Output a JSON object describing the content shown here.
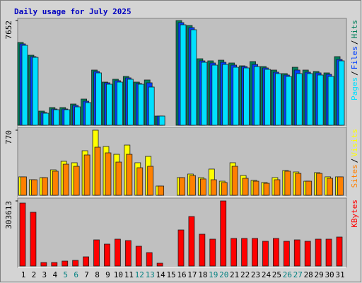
{
  "title": "Daily usage for July 2025",
  "legend_separator": "/",
  "chart_data": [
    {
      "type": "bar",
      "ylim": [
        0,
        7652
      ],
      "yticks": [
        7652
      ],
      "series": [
        {
          "name": "Hits",
          "color": "#00805c",
          "values": [
            6049,
            5118,
            1034,
            1293,
            1293,
            1551,
            1913,
            4033,
            3154,
            3361,
            3567,
            3154,
            3309,
            672,
            0,
            7652,
            7290,
            4860,
            4705,
            4756,
            4550,
            4343,
            4653,
            4291,
            4033,
            3774,
            4239,
            4033,
            3929,
            3826,
            5015
          ]
        },
        {
          "name": "Files",
          "color": "#0040ff",
          "values": [
            5946,
            5015,
            931,
            1189,
            1189,
            1448,
            1758,
            3929,
            3102,
            3257,
            3464,
            3050,
            3102,
            672,
            0,
            7497,
            7135,
            4705,
            4550,
            4601,
            4395,
            4291,
            4446,
            4188,
            3878,
            3671,
            4033,
            3878,
            3826,
            3722,
            4808
          ]
        },
        {
          "name": "Pages",
          "color": "#00e0ff",
          "values": [
            5842,
            4963,
            879,
            1137,
            1137,
            1344,
            1654,
            3826,
            2999,
            3154,
            3361,
            2999,
            2792,
            672,
            0,
            7341,
            6980,
            4601,
            4395,
            4446,
            4239,
            4188,
            4291,
            4084,
            3774,
            3567,
            3774,
            3774,
            3671,
            3567,
            4705
          ]
        }
      ]
    },
    {
      "type": "bar",
      "ylim": [
        0,
        770
      ],
      "yticks": [
        770
      ],
      "series": [
        {
          "name": "Visits",
          "color": "#ffff00",
          "values": [
            218,
            184,
            209,
            301,
            402,
            385,
            527,
            770,
            577,
            485,
            594,
            385,
            460,
            109,
            0,
            209,
            251,
            209,
            310,
            167,
            385,
            234,
            176,
            151,
            209,
            293,
            276,
            167,
            268,
            218,
            218
          ]
        },
        {
          "name": "Sites",
          "color": "#ff8000",
          "values": [
            218,
            184,
            209,
            285,
            368,
            343,
            477,
            569,
            502,
            393,
            485,
            326,
            343,
            109,
            0,
            209,
            234,
            193,
            184,
            151,
            343,
            201,
            167,
            142,
            184,
            285,
            259,
            167,
            259,
            201,
            218
          ]
        }
      ]
    },
    {
      "type": "bar",
      "ylim": [
        0,
        303613
      ],
      "yticks": [
        303613
      ],
      "categories": [
        "1",
        "2",
        "3",
        "4",
        "5",
        "6",
        "7",
        "8",
        "9",
        "10",
        "11",
        "12",
        "13",
        "14",
        "15",
        "16",
        "17",
        "18",
        "19",
        "20",
        "21",
        "22",
        "23",
        "24",
        "25",
        "26",
        "27",
        "28",
        "29",
        "30",
        "31"
      ],
      "highlighted_categories": [
        "5",
        "6",
        "12",
        "13",
        "19",
        "20",
        "26",
        "27"
      ],
      "highlight_color": "#008080",
      "series": [
        {
          "name": "KBytes",
          "color": "#ff0000",
          "values": [
            293700,
            250800,
            16500,
            16500,
            23100,
            26400,
            42900,
            122100,
            102300,
            125400,
            118800,
            92400,
            62700,
            13200,
            0,
            168300,
            231000,
            148500,
            125400,
            303613,
            128700,
            128700,
            128700,
            115500,
            128700,
            115500,
            122100,
            115500,
            125400,
            125400,
            135300
          ]
        }
      ]
    }
  ]
}
